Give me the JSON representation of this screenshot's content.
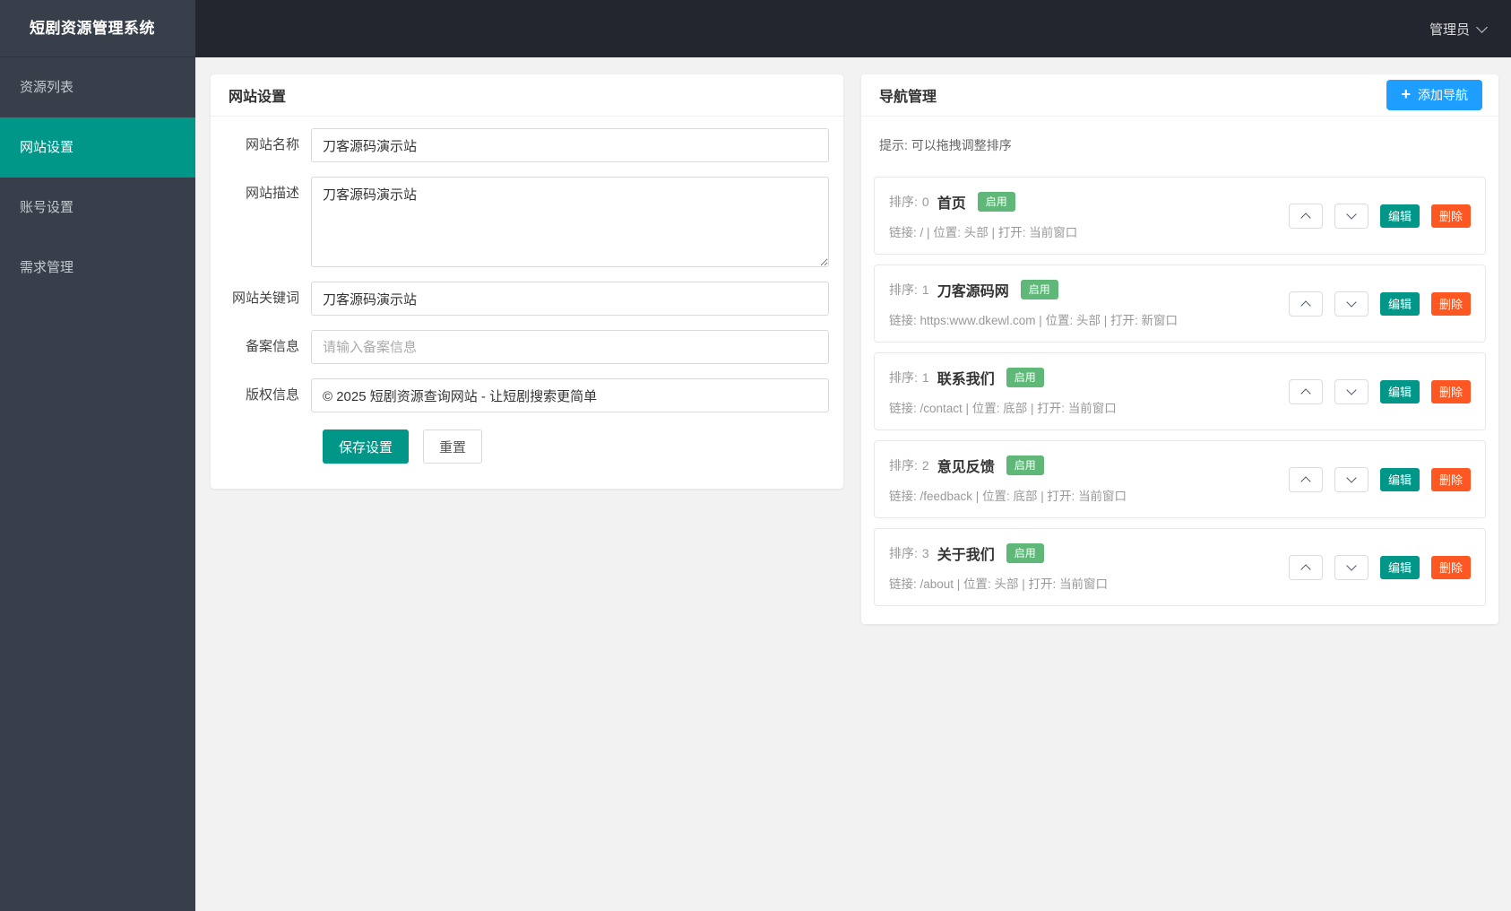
{
  "app": {
    "brand": "短剧资源管理系统",
    "user": "管理员"
  },
  "colors": {
    "sidebar_bg": "#383e4a",
    "topbar_bg": "#23262e",
    "active_menu": "#009688",
    "primary_teal": "#009688",
    "add_button_blue": "#1E9FFF",
    "enabled_badge_green": "#5FB878",
    "delete_orange": "#FF5722",
    "content_bg": "#f2f2f2"
  },
  "sidebar": {
    "items": [
      {
        "label": "资源列表",
        "active": false
      },
      {
        "label": "网站设置",
        "active": true
      },
      {
        "label": "账号设置",
        "active": false
      },
      {
        "label": "需求管理",
        "active": false
      }
    ]
  },
  "site_settings": {
    "title": "网站设置",
    "fields": [
      {
        "label": "网站名称",
        "type": "input",
        "value": "刀客源码演示站"
      },
      {
        "label": "网站描述",
        "type": "textarea",
        "value": "刀客源码演示站"
      },
      {
        "label": "网站关键词",
        "type": "input",
        "value": "刀客源码演示站"
      },
      {
        "label": "备案信息",
        "type": "input",
        "value": "",
        "placeholder": "请输入备案信息"
      },
      {
        "label": "版权信息",
        "type": "input",
        "value": "© 2025 短剧资源查询网站 - 让短剧搜索更简单"
      }
    ],
    "save_label": "保存设置",
    "reset_label": "重置"
  },
  "nav_manager": {
    "title": "导航管理",
    "add_label": "添加导航",
    "add_icon": "+",
    "tip": "提示: 可以拖拽调整排序",
    "sort_prefix": "排序:",
    "edit_label": "编辑",
    "delete_label": "删除",
    "items": [
      {
        "sort": "0",
        "name": "首页",
        "status": "启用",
        "meta": "链接: / | 位置: 头部 | 打开: 当前窗口"
      },
      {
        "sort": "1",
        "name": "刀客源码网",
        "status": "启用",
        "meta": "链接: https:www.dkewl.com | 位置: 头部 | 打开: 新窗口"
      },
      {
        "sort": "1",
        "name": "联系我们",
        "status": "启用",
        "meta": "链接: /contact | 位置: 底部 | 打开: 当前窗口"
      },
      {
        "sort": "2",
        "name": "意见反馈",
        "status": "启用",
        "meta": "链接: /feedback | 位置: 底部 | 打开: 当前窗口"
      },
      {
        "sort": "3",
        "name": "关于我们",
        "status": "启用",
        "meta": "链接: /about | 位置: 头部 | 打开: 当前窗口"
      }
    ]
  }
}
